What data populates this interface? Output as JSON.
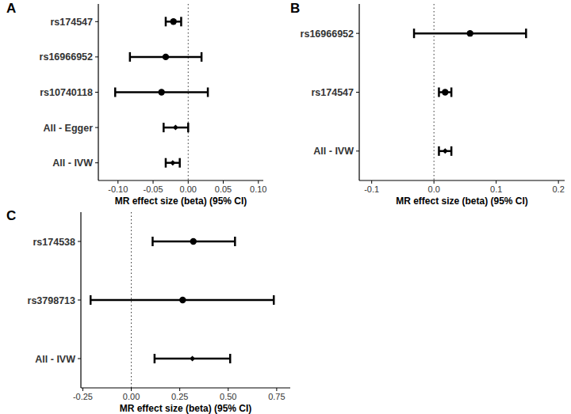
{
  "chart_data": [
    {
      "type": "forest",
      "title": "A",
      "x_label": "MR effect size (beta) (95% CI)",
      "categories": [
        "rs174547",
        "rs16966952",
        "rs10740118",
        "All - Egger",
        "All - IVW"
      ],
      "series": [
        {
          "marker": "circle",
          "values": [
            -0.021,
            -0.032,
            -0.038,
            null,
            null
          ],
          "ci_lower": [
            -0.032,
            -0.083,
            -0.104,
            null,
            null
          ],
          "ci_upper": [
            -0.01,
            0.019,
            0.028,
            null,
            null
          ]
        },
        {
          "marker": "diamond",
          "values": [
            null,
            null,
            null,
            -0.018,
            -0.022
          ],
          "ci_lower": [
            null,
            null,
            null,
            -0.035,
            -0.032
          ],
          "ci_upper": [
            null,
            null,
            null,
            0.0,
            -0.012
          ]
        }
      ],
      "xlim": [
        -0.128,
        0.107
      ],
      "xticks": [
        {
          "value": -0.1,
          "label": "-0.10"
        },
        {
          "value": -0.05,
          "label": "-0.05"
        },
        {
          "value": 0,
          "label": "0.00"
        },
        {
          "value": 0.05,
          "label": "0.05"
        },
        {
          "value": 0.1,
          "label": "0.10"
        }
      ],
      "null_line": 0
    },
    {
      "type": "forest",
      "title": "B",
      "x_label": "MR effect size (beta) (95% CI)",
      "categories": [
        "rs16966952",
        "rs174547",
        "All - IVW"
      ],
      "series": [
        {
          "marker": "circle",
          "values": [
            0.058,
            0.018,
            null
          ],
          "ci_lower": [
            -0.032,
            0.008,
            null
          ],
          "ci_upper": [
            0.148,
            0.028,
            null
          ]
        },
        {
          "marker": "diamond",
          "values": [
            null,
            null,
            0.018
          ],
          "ci_lower": [
            null,
            null,
            0.008
          ],
          "ci_upper": [
            null,
            null,
            0.028
          ]
        }
      ],
      "xlim": [
        -0.12,
        0.21
      ],
      "xticks": [
        {
          "value": -0.1,
          "label": "-0.1"
        },
        {
          "value": 0,
          "label": "0.0"
        },
        {
          "value": 0.1,
          "label": "0.1"
        },
        {
          "value": 0.2,
          "label": "0.2"
        }
      ],
      "null_line": 0
    },
    {
      "type": "forest",
      "title": "C",
      "x_label": "MR effect size (beta) (95% CI)",
      "categories": [
        "rs174538",
        "rs3798713",
        "All - IVW"
      ],
      "series": [
        {
          "marker": "circle",
          "values": [
            0.32,
            0.265,
            null
          ],
          "ci_lower": [
            0.11,
            -0.21,
            null
          ],
          "ci_upper": [
            0.535,
            0.735,
            null
          ]
        },
        {
          "marker": "diamond",
          "values": [
            null,
            null,
            0.315
          ],
          "ci_lower": [
            null,
            null,
            0.12
          ],
          "ci_upper": [
            null,
            null,
            0.51
          ]
        }
      ],
      "xlim": [
        -0.26,
        0.82
      ],
      "xticks": [
        {
          "value": -0.25,
          "label": "-0.25"
        },
        {
          "value": 0,
          "label": "0.00"
        },
        {
          "value": 0.25,
          "label": "0.25"
        },
        {
          "value": 0.5,
          "label": "0.50"
        },
        {
          "value": 0.75,
          "label": "0.75"
        }
      ],
      "null_line": 0
    }
  ]
}
